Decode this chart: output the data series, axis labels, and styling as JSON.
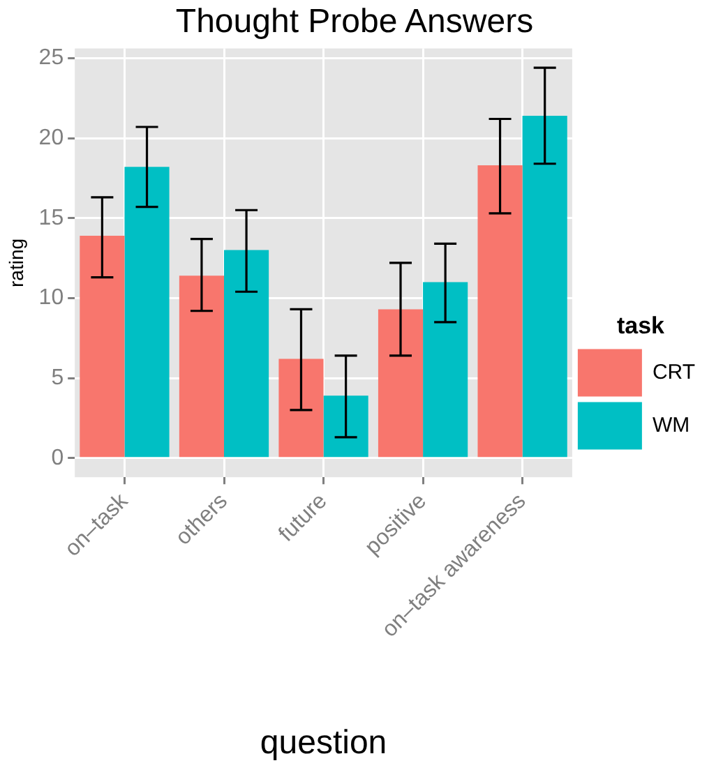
{
  "chart_data": {
    "type": "bar",
    "title": "Thought Probe Answers",
    "xlabel": "question",
    "ylabel": "rating",
    "legend_title": "task",
    "categories": [
      "on–task",
      "others",
      "future",
      "positive",
      "on–task awareness"
    ],
    "series": [
      {
        "name": "CRT",
        "color": "#f8766d",
        "values": [
          13.9,
          11.4,
          6.2,
          9.3,
          18.3
        ],
        "errors": [
          [
            11.3,
            16.3
          ],
          [
            9.2,
            13.7
          ],
          [
            3.0,
            9.3
          ],
          [
            6.4,
            12.2
          ],
          [
            15.3,
            21.2
          ]
        ]
      },
      {
        "name": "WM",
        "color": "#00bfc4",
        "values": [
          18.2,
          13.0,
          3.9,
          11.0,
          21.4
        ],
        "errors": [
          [
            15.7,
            20.7
          ],
          [
            10.4,
            15.5
          ],
          [
            1.3,
            6.4
          ],
          [
            8.5,
            13.4
          ],
          [
            18.4,
            24.4
          ]
        ]
      }
    ],
    "ylim": [
      -1.2,
      25.6
    ],
    "yticks": [
      0,
      5,
      10,
      15,
      20,
      25
    ],
    "grid": true,
    "legend": "right"
  }
}
